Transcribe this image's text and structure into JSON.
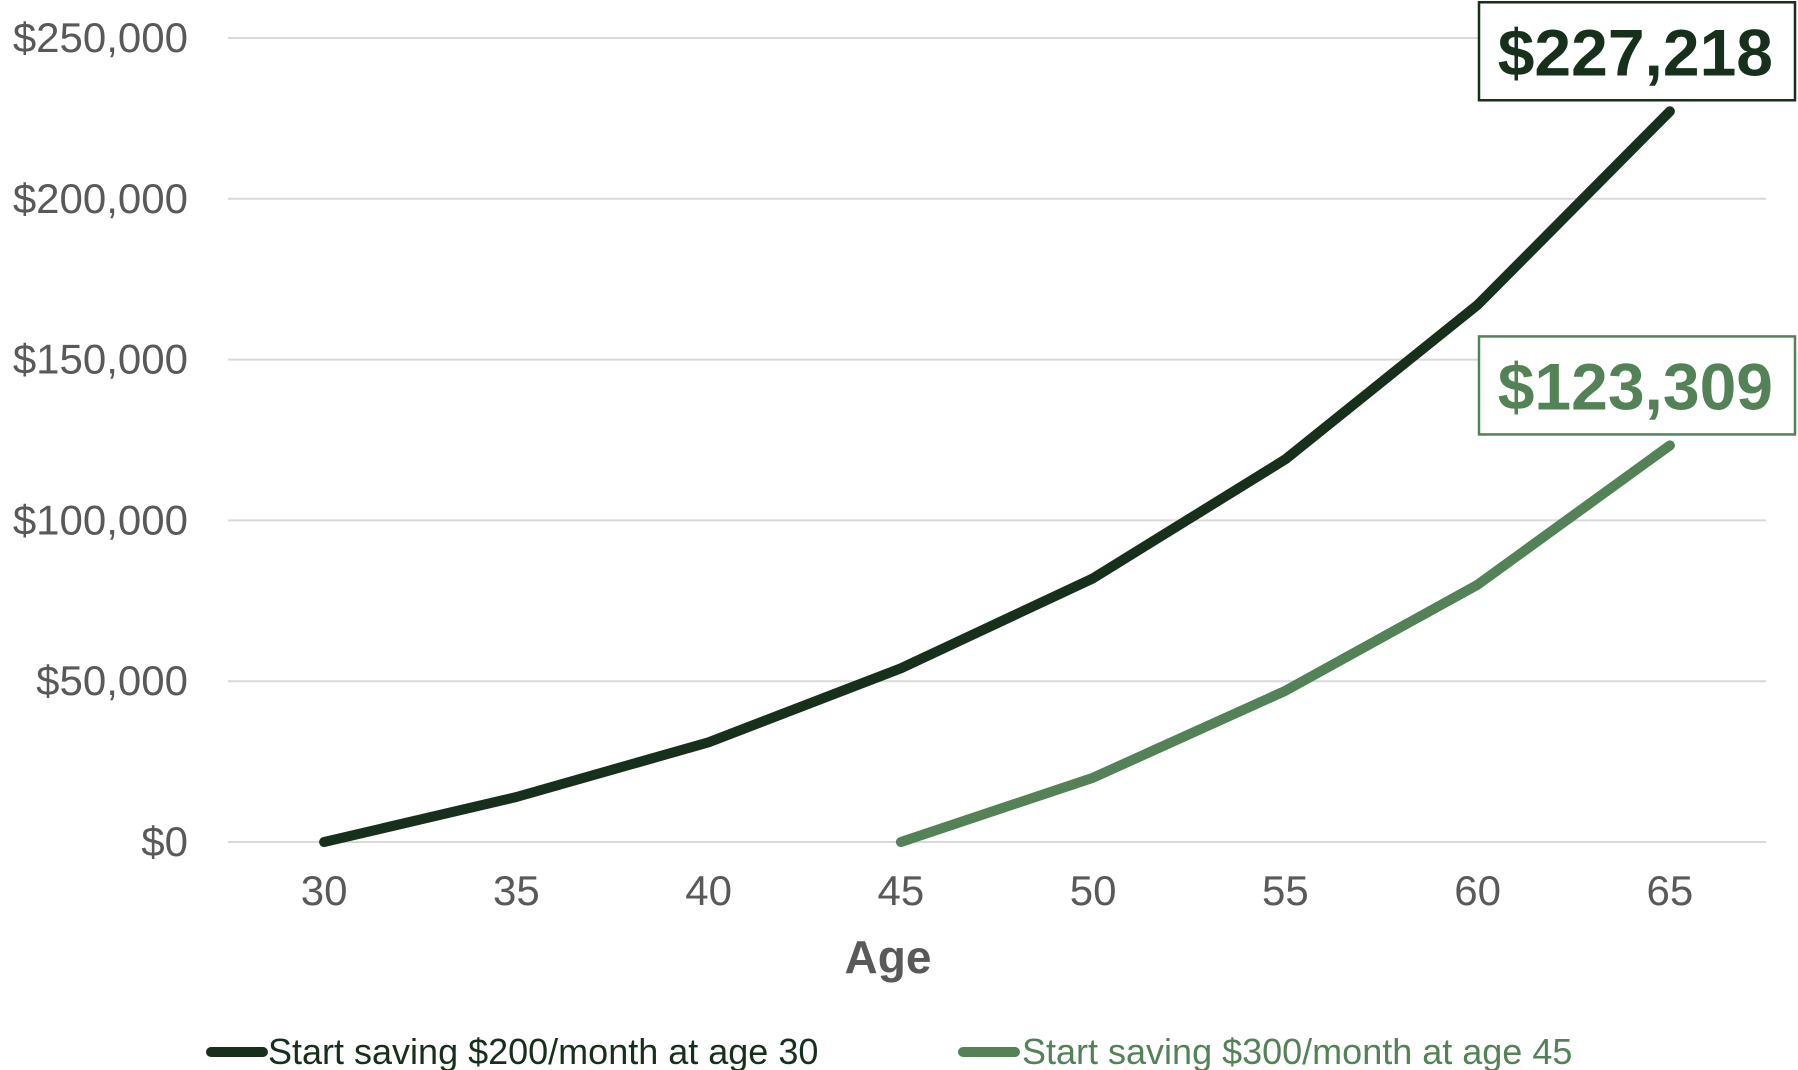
{
  "chart_data": {
    "type": "line",
    "title": "",
    "xlabel": "Age",
    "ylabel": "",
    "x": [
      30,
      35,
      40,
      45,
      50,
      55,
      60,
      65
    ],
    "xlim": [
      27.5,
      67.5
    ],
    "ylim": [
      0,
      250000
    ],
    "y_ticks": [
      0,
      50000,
      100000,
      150000,
      200000,
      250000
    ],
    "y_tick_labels": [
      "$0",
      "$50,000",
      "$100,000",
      "$150,000",
      "$200,000",
      "$250,000"
    ],
    "x_tick_labels": [
      "30",
      "35",
      "40",
      "45",
      "50",
      "55",
      "60",
      "65"
    ],
    "grid": true,
    "legend_position": "bottom",
    "series": [
      {
        "name": "Start saving $200/month at age 30",
        "color": "#17301c",
        "values": [
          0,
          14000,
          31000,
          54000,
          82000,
          119000,
          167000,
          227218
        ]
      },
      {
        "name": "Start saving $300/month at age 45",
        "color": "#538257",
        "values": [
          null,
          null,
          null,
          0,
          20000,
          47000,
          80000,
          123309
        ]
      }
    ],
    "annotations": [
      {
        "series": 0,
        "text": "$227,218",
        "color": "#17301c"
      },
      {
        "series": 1,
        "text": "$123,309",
        "color": "#538257"
      }
    ]
  }
}
